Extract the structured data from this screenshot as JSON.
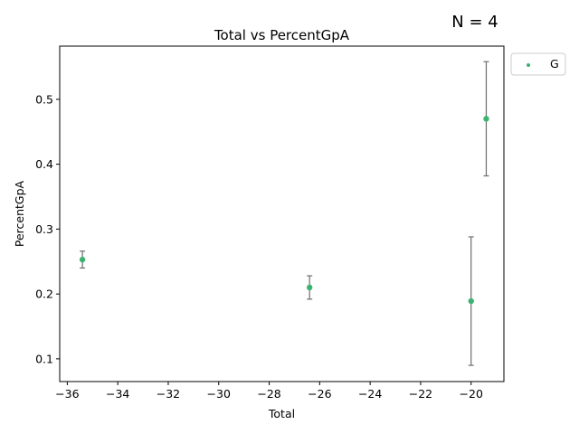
{
  "chart_data": {
    "type": "scatter",
    "title": "Total vs PercentGpA",
    "xlabel": "Total",
    "ylabel": "PercentGpA",
    "annotation": "N = 4",
    "xlim": [
      -36.3,
      -18.7
    ],
    "ylim": [
      0.065,
      0.582
    ],
    "xticks": [
      -36,
      -34,
      -32,
      -30,
      -28,
      -26,
      -24,
      -22,
      -20
    ],
    "xtick_labels": [
      "−36",
      "−34",
      "−32",
      "−30",
      "−28",
      "−26",
      "−24",
      "−22",
      "−20"
    ],
    "yticks": [
      0.1,
      0.2,
      0.3,
      0.4,
      0.5
    ],
    "ytick_labels": [
      "0.1",
      "0.2",
      "0.3",
      "0.4",
      "0.5"
    ],
    "grid": false,
    "legend_position": "outside top-right",
    "colors": {
      "marker": "#3cb371",
      "errorbar": "#6e6e6e"
    },
    "series": [
      {
        "name": "G",
        "points": [
          {
            "x": -35.4,
            "y": 0.253,
            "err_low": 0.24,
            "err_high": 0.266
          },
          {
            "x": -26.4,
            "y": 0.21,
            "err_low": 0.192,
            "err_high": 0.228
          },
          {
            "x": -20.0,
            "y": 0.189,
            "err_low": 0.09,
            "err_high": 0.288
          },
          {
            "x": -19.4,
            "y": 0.47,
            "err_low": 0.382,
            "err_high": 0.558
          }
        ]
      }
    ]
  }
}
